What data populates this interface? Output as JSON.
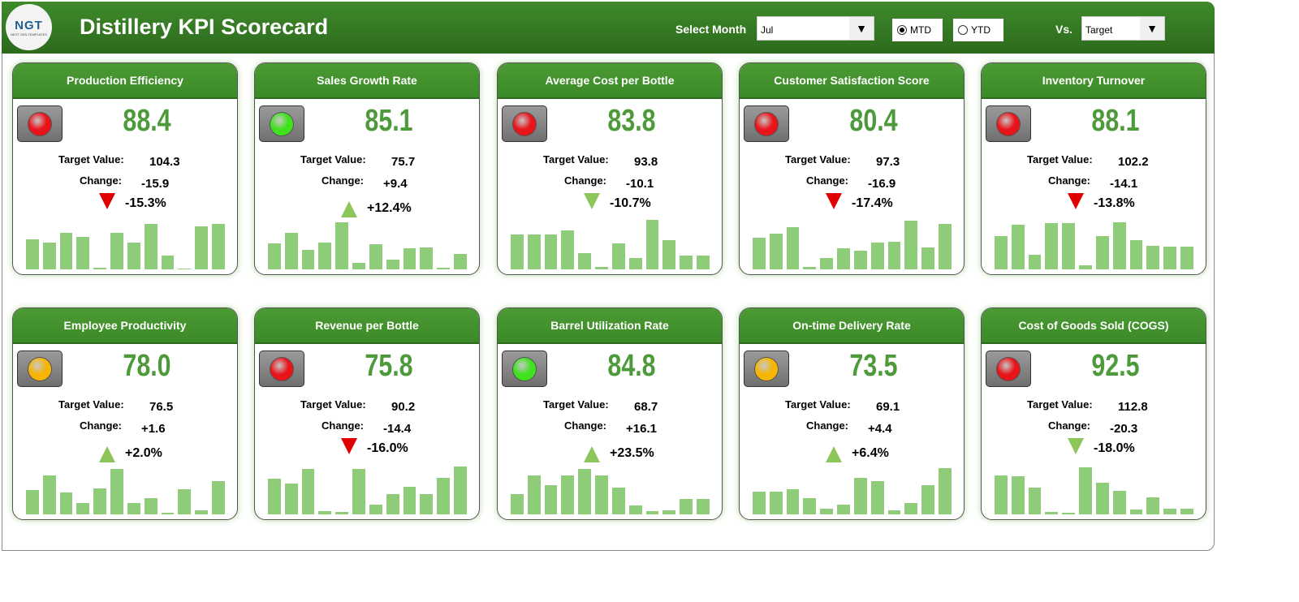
{
  "header": {
    "logo_text": "NGT",
    "logo_sub": "NEXT GEN TEMPLATES",
    "title": "Distillery KPI Scorecard",
    "month_label": "Select Month",
    "month_value": "Jul",
    "mtd_label": "MTD",
    "ytd_label": "YTD",
    "mtd_selected": true,
    "vs_label": "Vs.",
    "vs_value": "Target"
  },
  "labels": {
    "target": "Target Value:",
    "change": "Change:"
  },
  "colors": {
    "red": "#e8141a",
    "green": "#3fe21c",
    "yellow": "#f7b500",
    "arrow_up": "#8cc65a",
    "arrow_down_red": "#e00000",
    "arrow_down_green": "#8cc65a"
  },
  "cards": [
    {
      "title": "Production Efficiency",
      "value": "88.4",
      "target": "104.3",
      "change": "-15.9",
      "pct": "-15.3%",
      "light": "red",
      "arrow": "down",
      "arrow_color": "red",
      "trend": [
        37,
        33,
        45,
        40,
        2,
        45,
        33,
        56,
        17,
        1,
        53,
        56
      ]
    },
    {
      "title": "Sales Growth Rate",
      "value": "85.1",
      "target": "75.7",
      "change": "+9.4",
      "pct": "+12.4%",
      "light": "green",
      "arrow": "up",
      "arrow_color": "green",
      "trend": [
        32,
        45,
        24,
        33,
        58,
        8,
        31,
        12,
        26,
        27,
        2,
        19
      ]
    },
    {
      "title": "Average Cost per Bottle",
      "value": "83.8",
      "target": "93.8",
      "change": "-10.1",
      "pct": "-10.7%",
      "light": "red",
      "arrow": "down",
      "arrow_color": "green",
      "trend": [
        43,
        43,
        43,
        48,
        20,
        3,
        32,
        14,
        61,
        36,
        17,
        17
      ]
    },
    {
      "title": "Customer Satisfaction Score",
      "value": "80.4",
      "target": "97.3",
      "change": "-16.9",
      "pct": "-17.4%",
      "light": "red",
      "arrow": "down",
      "arrow_color": "red",
      "trend": [
        39,
        44,
        52,
        3,
        14,
        26,
        23,
        33,
        34,
        60,
        27,
        56
      ]
    },
    {
      "title": "Inventory Turnover",
      "value": "88.1",
      "target": "102.2",
      "change": "-14.1",
      "pct": "-13.8%",
      "light": "red",
      "arrow": "down",
      "arrow_color": "red",
      "trend": [
        41,
        55,
        18,
        57,
        57,
        5,
        41,
        58,
        36,
        29,
        28,
        28
      ]
    },
    {
      "title": "Employee Productivity",
      "value": "78.0",
      "target": "76.5",
      "change": "+1.6",
      "pct": "+2.0%",
      "light": "yellow",
      "arrow": "up",
      "arrow_color": "green",
      "trend": [
        30,
        48,
        27,
        14,
        32,
        56,
        14,
        20,
        2,
        31,
        5,
        41
      ]
    },
    {
      "title": "Revenue per Bottle",
      "value": "75.8",
      "target": "90.2",
      "change": "-14.4",
      "pct": "-16.0%",
      "light": "red",
      "arrow": "down",
      "arrow_color": "red",
      "trend": [
        44,
        38,
        56,
        4,
        3,
        56,
        12,
        25,
        34,
        25,
        45,
        59
      ]
    },
    {
      "title": "Barrel Utilization Rate",
      "value": "84.8",
      "target": "68.7",
      "change": "+16.1",
      "pct": "+23.5%",
      "light": "green",
      "arrow": "up",
      "arrow_color": "green",
      "trend": [
        25,
        48,
        36,
        48,
        56,
        48,
        33,
        11,
        4,
        5,
        19,
        19
      ]
    },
    {
      "title": "On-time Delivery Rate",
      "value": "73.5",
      "target": "69.1",
      "change": "+4.4",
      "pct": "+6.4%",
      "light": "yellow",
      "arrow": "up",
      "arrow_color": "green",
      "trend": [
        28,
        28,
        31,
        20,
        7,
        12,
        45,
        41,
        5,
        14,
        36,
        57
      ]
    },
    {
      "title": "Cost of Goods Sold (COGS)",
      "value": "92.5",
      "target": "112.8",
      "change": "-20.3",
      "pct": "-18.0%",
      "light": "red",
      "arrow": "down",
      "arrow_color": "green",
      "trend": [
        48,
        47,
        33,
        3,
        2,
        58,
        39,
        29,
        6,
        21,
        7,
        7
      ]
    }
  ]
}
